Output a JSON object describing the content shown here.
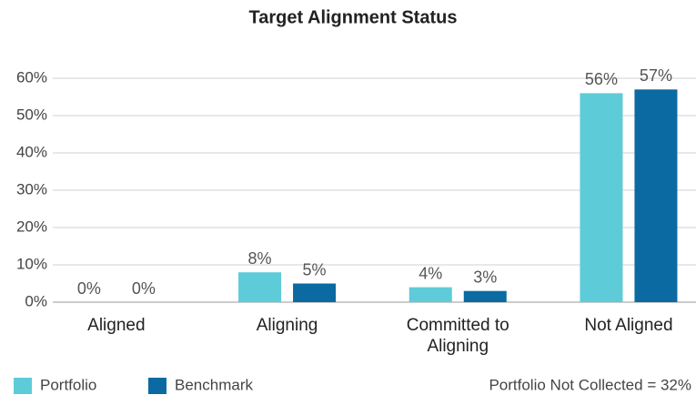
{
  "chart_data": {
    "type": "bar",
    "title": "Target Alignment Status",
    "categories": [
      "Aligned",
      "Aligning",
      "Committed to Aligning",
      "Not Aligned"
    ],
    "series": [
      {
        "name": "Portfolio",
        "color": "#5ecbd8",
        "values": [
          0,
          8,
          4,
          56
        ],
        "value_labels": [
          "0%",
          "8%",
          "4%",
          "56%"
        ]
      },
      {
        "name": "Benchmark",
        "color": "#0a6aa1",
        "values": [
          0,
          5,
          3,
          57
        ],
        "value_labels": [
          "0%",
          "5%",
          "3%",
          "57%"
        ]
      }
    ],
    "ylim": [
      0,
      60
    ],
    "yticks": [
      {
        "value": 0,
        "label": "0%"
      },
      {
        "value": 10,
        "label": "10%"
      },
      {
        "value": 20,
        "label": "20%"
      },
      {
        "value": 30,
        "label": "30%"
      },
      {
        "value": 40,
        "label": "40%"
      },
      {
        "value": 50,
        "label": "50%"
      },
      {
        "value": 60,
        "label": "60%"
      }
    ],
    "grid": true,
    "legend": "bottom-left",
    "annotation": "Portfolio Not Collected = 32%"
  }
}
